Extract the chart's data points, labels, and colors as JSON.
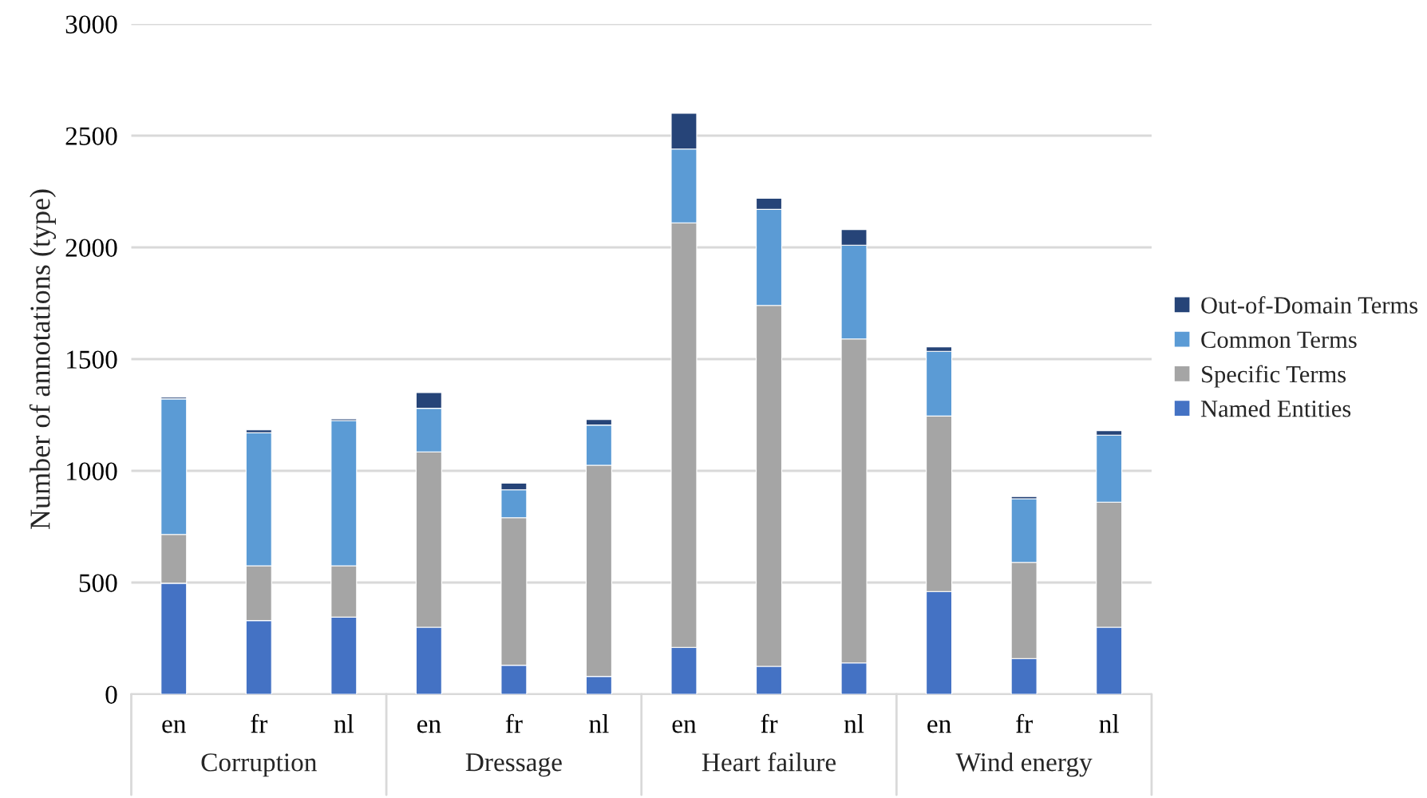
{
  "chart_data": {
    "type": "bar",
    "stacked": true,
    "ylabel": "Number of annotations (type)",
    "categories": [
      "en",
      "fr",
      "nl",
      "en",
      "fr",
      "nl",
      "en",
      "fr",
      "nl",
      "en",
      "fr",
      "nl"
    ],
    "annotations": [
      "Corruption",
      "Dressage",
      "Heart failure",
      "Wind energy"
    ],
    "series": [
      {
        "name": "Named Entities",
        "color": "#4472c4",
        "values": [
          497,
          330,
          345,
          300,
          130,
          80,
          210,
          125,
          140,
          460,
          160,
          300
        ]
      },
      {
        "name": "Specific Terms",
        "color": "#a5a5a5",
        "values": [
          218,
          245,
          230,
          785,
          660,
          945,
          1900,
          1615,
          1450,
          785,
          430,
          560
        ]
      },
      {
        "name": "Common Terms",
        "color": "#5b9bd5",
        "values": [
          607,
          595,
          650,
          195,
          125,
          180,
          330,
          430,
          420,
          290,
          285,
          300
        ]
      },
      {
        "name": "Out-of-Domain Terms",
        "color": "#264478",
        "values": [
          8,
          13,
          7,
          70,
          30,
          25,
          160,
          50,
          70,
          20,
          10,
          20
        ]
      }
    ],
    "ylim": [
      0,
      3000
    ],
    "yticks": [
      0,
      500,
      1000,
      1500,
      2000,
      2500,
      3000
    ],
    "grid": "y",
    "legend": "right"
  }
}
